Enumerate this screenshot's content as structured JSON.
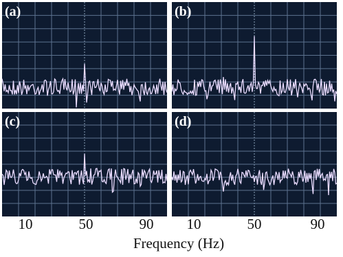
{
  "panels": [
    {
      "label": "(a)"
    },
    {
      "label": "(b)"
    },
    {
      "label": "(c)"
    },
    {
      "label": "(d)"
    }
  ],
  "axes": [
    {
      "ticks": [
        "10",
        "50",
        "90"
      ]
    },
    {
      "ticks": [
        "10",
        "50",
        "90"
      ]
    }
  ],
  "xlabel": "Frequency (Hz)"
}
